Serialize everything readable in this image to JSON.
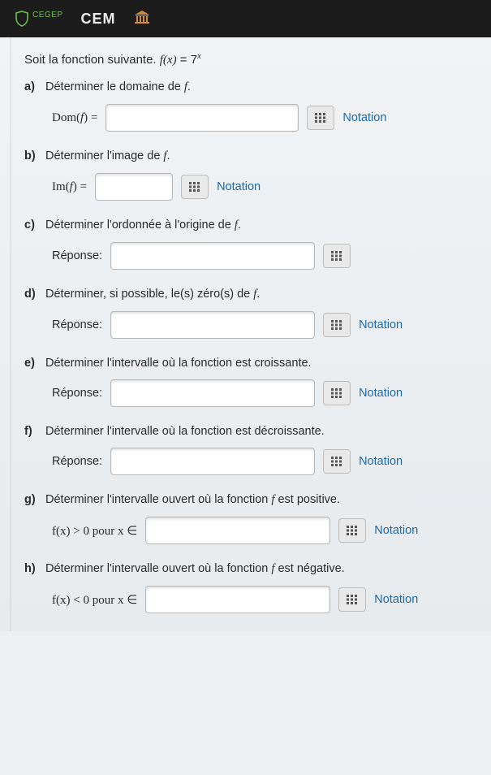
{
  "header": {
    "shield_small_label": "CEGEP",
    "cem": "CEM"
  },
  "intro": {
    "prefix": "Soit la fonction suivante. ",
    "fx_lhs": "f(x)",
    "eq": " = ",
    "base": "7",
    "exp": "x"
  },
  "notation_label": "Notation",
  "questions": {
    "a": {
      "label": "a)",
      "text": "Déterminer le domaine de ",
      "tail": ".",
      "lhs_pre": "Dom(",
      "lhs_var": "f",
      "lhs_post": ")  =",
      "input_width": 238,
      "show_notation": true
    },
    "b": {
      "label": "b)",
      "text": "Déterminer l'image de ",
      "tail": ".",
      "lhs_pre": "Im(",
      "lhs_var": "f",
      "lhs_post": ")  =",
      "input_width": 96,
      "show_notation": true
    },
    "c": {
      "label": "c)",
      "text": "Déterminer l'ordonnée à l'origine de ",
      "tail": ".",
      "lhs_plain": "Réponse:",
      "input_width": 252,
      "show_notation": false
    },
    "d": {
      "label": "d)",
      "text": "Déterminer, si possible, le(s) zéro(s) de ",
      "tail": ".",
      "lhs_plain": "Réponse:",
      "input_width": 252,
      "show_notation": true
    },
    "e": {
      "label": "e)",
      "text_full": "Déterminer l'intervalle où la fonction est croissante.",
      "lhs_plain": "Réponse:",
      "input_width": 252,
      "show_notation": true
    },
    "f": {
      "label": "f)",
      "text_full": "Déterminer l'intervalle où la fonction est décroissante.",
      "lhs_plain": "Réponse:",
      "input_width": 252,
      "show_notation": true
    },
    "g": {
      "label": "g)",
      "text": "Déterminer l'intervalle ouvert où la fonction ",
      "tail": " est positive.",
      "lhs_math": "f(x) > 0 pour x ∈",
      "input_width": 228,
      "show_notation": true
    },
    "h": {
      "label": "h)",
      "text": "Déterminer l'intervalle ouvert où la fonction ",
      "tail": " est négative.",
      "lhs_math": "f(x) < 0 pour x ∈",
      "input_width": 228,
      "show_notation": true
    }
  }
}
